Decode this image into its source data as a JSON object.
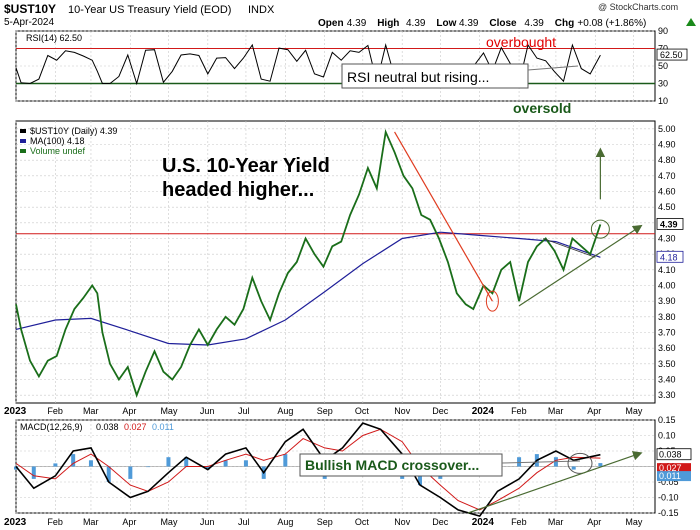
{
  "header": {
    "symbol": "$UST10Y",
    "description": "10-Year US Treasury Yield (EOD)",
    "exchange": "INDX",
    "date": "5-Apr-2024",
    "watermark": "@ StockCharts.com",
    "ohlc": [
      {
        "label": "Open",
        "value": "4.39"
      },
      {
        "label": "High",
        "value": "4.39"
      },
      {
        "label": "Low",
        "value": "4.39"
      },
      {
        "label": "Close",
        "value": "4.39"
      },
      {
        "label": "Chg",
        "value": "+0.08 (+1.86%)"
      }
    ],
    "chg_arrow_icon": "up-triangle-icon"
  },
  "colors": {
    "price": "#1a6e1a",
    "ma": "#1f1f99",
    "rsi": "#000000",
    "overbought_line": "#d11919",
    "oversold_line": "#1a5a1a",
    "trend_up": "#4a6b32",
    "trend_down": "#e03c20",
    "annotation_text": "#e00000",
    "macd": "#000000",
    "signal": "#d11919",
    "histogram": "#4f9ad8",
    "grid": "#c8c8c8"
  },
  "annotations": {
    "overbought": "overbought",
    "oversold": "oversold",
    "rsi_box": "RSI neutral but rising...",
    "headline_1": "U.S. 10-Year Yield",
    "headline_2": "headed higher...",
    "macd_box": "Bullish MACD crossover..."
  },
  "x_axis": {
    "labels": [
      "2023",
      "Feb",
      "Mar",
      "Apr",
      "May",
      "Jun",
      "Jul",
      "Aug",
      "Sep",
      "Oct",
      "Nov",
      "Dec",
      "2024",
      "Feb",
      "Mar",
      "Apr",
      "May"
    ],
    "bold": [
      "2023",
      "2024"
    ]
  },
  "chart_data": [
    {
      "type": "line",
      "title": "RSI(14) 62.50",
      "legend": "RSI(14) 62.50",
      "ylim": [
        10,
        90
      ],
      "yticks": [
        "90",
        "70",
        "50",
        "30",
        "10"
      ],
      "ytick_values": [
        90,
        70,
        50,
        30,
        10
      ],
      "overbought_level": 70,
      "oversold_level": 30,
      "last_value": 62.5,
      "last_value_label": "62.50",
      "grid": true
    },
    {
      "type": "line",
      "legend": [
        "$UST10Y (Daily) 4.39",
        "MA(100) 4.18",
        "Volume undef"
      ],
      "ylim": [
        3.25,
        5.05
      ],
      "yticks": [
        "5.00",
        "4.90",
        "4.80",
        "4.70",
        "4.60",
        "4.50",
        "4.40",
        "4.30",
        "4.20",
        "4.10",
        "4.00",
        "3.90",
        "3.80",
        "3.70",
        "3.60",
        "3.50",
        "3.40",
        "3.30"
      ],
      "ytick_values": [
        5.0,
        4.9,
        4.8,
        4.7,
        4.6,
        4.5,
        4.4,
        4.3,
        4.2,
        4.1,
        4.0,
        3.9,
        3.8,
        3.7,
        3.6,
        3.5,
        3.4,
        3.3
      ],
      "resistance_level": 4.33,
      "last_price": 4.39,
      "last_price_label": "4.39",
      "last_ma": 4.18,
      "last_ma_label": "4.18",
      "grid": true,
      "series": [
        {
          "name": "$UST10Y (Daily) 4.39",
          "x": [
            "2023-01-01",
            "2023-01-05",
            "2023-01-12",
            "2023-01-19",
            "2023-01-26",
            "2023-02-02",
            "2023-02-09",
            "2023-02-16",
            "2023-02-23",
            "2023-03-02",
            "2023-03-06",
            "2023-03-10",
            "2023-03-16",
            "2023-03-23",
            "2023-03-30",
            "2023-04-06",
            "2023-04-13",
            "2023-04-20",
            "2023-04-27",
            "2023-05-04",
            "2023-05-11",
            "2023-05-18",
            "2023-05-25",
            "2023-06-01",
            "2023-06-08",
            "2023-06-15",
            "2023-06-22",
            "2023-06-29",
            "2023-07-06",
            "2023-07-13",
            "2023-07-20",
            "2023-07-27",
            "2023-08-03",
            "2023-08-10",
            "2023-08-17",
            "2023-08-24",
            "2023-08-31",
            "2023-09-07",
            "2023-09-14",
            "2023-09-21",
            "2023-09-28",
            "2023-10-05",
            "2023-10-12",
            "2023-10-19",
            "2023-10-26",
            "2023-11-02",
            "2023-11-09",
            "2023-11-16",
            "2023-11-23",
            "2023-11-30",
            "2023-12-07",
            "2023-12-14",
            "2023-12-21",
            "2023-12-27",
            "2024-01-04",
            "2024-01-11",
            "2024-01-18",
            "2024-01-25",
            "2024-02-01",
            "2024-02-08",
            "2024-02-15",
            "2024-02-22",
            "2024-02-29",
            "2024-03-07",
            "2024-03-14",
            "2024-03-21",
            "2024-03-28",
            "2024-04-05"
          ],
          "values": [
            3.88,
            3.72,
            3.52,
            3.42,
            3.52,
            3.55,
            3.72,
            3.85,
            3.92,
            4.0,
            3.95,
            3.7,
            3.5,
            3.4,
            3.48,
            3.3,
            3.45,
            3.58,
            3.45,
            3.4,
            3.48,
            3.62,
            3.72,
            3.62,
            3.72,
            3.8,
            3.75,
            3.85,
            4.05,
            3.9,
            3.78,
            3.95,
            4.08,
            4.15,
            4.3,
            4.2,
            4.12,
            4.25,
            4.28,
            4.45,
            4.58,
            4.75,
            4.62,
            4.98,
            4.85,
            4.7,
            4.62,
            4.45,
            4.42,
            4.3,
            4.15,
            3.95,
            3.88,
            3.85,
            4.0,
            3.95,
            4.1,
            4.15,
            3.9,
            4.15,
            4.25,
            4.3,
            4.22,
            4.1,
            4.3,
            4.25,
            4.2,
            4.39
          ]
        },
        {
          "name": "MA(100) 4.18",
          "x": [
            "2023-01-01",
            "2023-02-01",
            "2023-03-01",
            "2023-04-01",
            "2023-05-01",
            "2023-06-01",
            "2023-07-01",
            "2023-08-01",
            "2023-09-01",
            "2023-10-01",
            "2023-11-01",
            "2023-12-01",
            "2024-01-01",
            "2024-02-01",
            "2024-03-01",
            "2024-04-05"
          ],
          "values": [
            3.72,
            3.78,
            3.79,
            3.71,
            3.63,
            3.62,
            3.66,
            3.78,
            3.96,
            4.14,
            4.3,
            4.34,
            4.32,
            4.3,
            4.28,
            4.18
          ]
        }
      ]
    },
    {
      "type": "line",
      "title": "MACD(12,26,9) 0.038, 0.027, 0.011",
      "legend": [
        {
          "label": "MACD(12,26,9)",
          "value": "0.038"
        },
        {
          "label": "",
          "value": "0.027"
        },
        {
          "label": "",
          "value": "0.011"
        }
      ],
      "ylim": [
        -0.15,
        0.15
      ],
      "yticks": [
        "0.15",
        "0.10",
        "0.05",
        "0.00",
        "-0.05",
        "-0.10",
        "-0.15"
      ],
      "ytick_values": [
        0.15,
        0.1,
        0.05,
        0.0,
        -0.05,
        -0.1,
        -0.15
      ],
      "last_macd": 0.038,
      "last_macd_label": "0.038",
      "last_signal": 0.027,
      "last_signal_label": "0.027",
      "last_hist": 0.011,
      "last_hist_label": "0.011",
      "grid": true,
      "series": [
        {
          "name": "MACD",
          "x": [
            "2023-01-01",
            "2023-01-15",
            "2023-02-01",
            "2023-02-15",
            "2023-03-01",
            "2023-03-15",
            "2023-04-01",
            "2023-04-15",
            "2023-05-01",
            "2023-05-15",
            "2023-06-01",
            "2023-06-15",
            "2023-07-01",
            "2023-07-15",
            "2023-08-01",
            "2023-08-15",
            "2023-09-01",
            "2023-09-15",
            "2023-10-01",
            "2023-10-15",
            "2023-11-01",
            "2023-11-15",
            "2023-12-01",
            "2023-12-15",
            "2024-01-01",
            "2024-01-15",
            "2024-02-01",
            "2024-02-15",
            "2024-03-01",
            "2024-03-15",
            "2024-04-05"
          ],
          "values": [
            0.0,
            -0.07,
            -0.03,
            0.05,
            0.06,
            -0.05,
            -0.1,
            -0.08,
            -0.02,
            0.03,
            -0.01,
            0.04,
            0.06,
            -0.02,
            0.08,
            0.12,
            0.02,
            0.06,
            0.14,
            0.12,
            0.04,
            -0.06,
            -0.1,
            -0.14,
            -0.16,
            -0.08,
            -0.04,
            0.02,
            0.05,
            0.02,
            0.038
          ]
        },
        {
          "name": "Signal",
          "x": [
            "2023-01-01",
            "2023-01-15",
            "2023-02-01",
            "2023-02-15",
            "2023-03-01",
            "2023-03-15",
            "2023-04-01",
            "2023-04-15",
            "2023-05-01",
            "2023-05-15",
            "2023-06-01",
            "2023-06-15",
            "2023-07-01",
            "2023-07-15",
            "2023-08-01",
            "2023-08-15",
            "2023-09-01",
            "2023-09-15",
            "2023-10-01",
            "2023-10-15",
            "2023-11-01",
            "2023-11-15",
            "2023-12-01",
            "2023-12-15",
            "2024-01-01",
            "2024-01-15",
            "2024-02-01",
            "2024-02-15",
            "2024-03-01",
            "2024-03-15",
            "2024-04-05"
          ],
          "values": [
            0.01,
            -0.03,
            -0.04,
            0.01,
            0.04,
            0.0,
            -0.06,
            -0.08,
            -0.05,
            0.0,
            0.0,
            0.02,
            0.04,
            0.02,
            0.04,
            0.09,
            0.06,
            0.05,
            0.1,
            0.12,
            0.08,
            0.0,
            -0.06,
            -0.11,
            -0.14,
            -0.11,
            -0.07,
            -0.02,
            0.02,
            0.03,
            0.027
          ]
        }
      ]
    }
  ]
}
